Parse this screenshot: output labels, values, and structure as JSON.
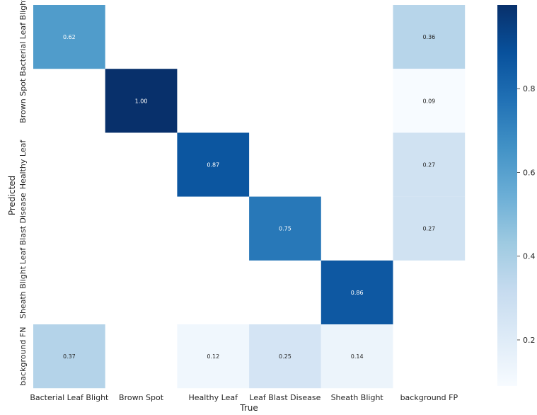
{
  "chart_data": {
    "type": "heatmap",
    "title": "",
    "xlabel": "True",
    "ylabel": "Predicted",
    "x_categories": [
      "Bacterial Leaf Blight",
      "Brown Spot",
      "Healthy Leaf",
      "Leaf Blast Disease",
      "Sheath Blight",
      "background FP"
    ],
    "y_categories": [
      "Bacterial Leaf Blight",
      "Brown Spot",
      "Healthy Leaf",
      "Leaf Blast Disease",
      "Sheath Blight",
      "background FN"
    ],
    "values": [
      [
        0.62,
        null,
        null,
        null,
        null,
        0.36
      ],
      [
        null,
        1.0,
        null,
        null,
        null,
        0.09
      ],
      [
        null,
        null,
        0.87,
        null,
        null,
        0.27
      ],
      [
        null,
        null,
        null,
        0.75,
        null,
        0.27
      ],
      [
        null,
        null,
        null,
        null,
        0.86,
        null
      ],
      [
        0.37,
        null,
        0.12,
        0.25,
        0.14,
        null
      ]
    ],
    "cell_labels": [
      [
        "0.62",
        "",
        "",
        "",
        "",
        "0.36"
      ],
      [
        "",
        "1.00",
        "",
        "",
        "",
        "0.09"
      ],
      [
        "",
        "",
        "0.87",
        "",
        "",
        "0.27"
      ],
      [
        "",
        "",
        "",
        "0.75",
        "",
        "0.27"
      ],
      [
        "",
        "",
        "",
        "",
        "0.86",
        ""
      ],
      [
        "0.37",
        "",
        "0.12",
        "0.25",
        "0.14",
        ""
      ]
    ],
    "colormap": "Blues",
    "vmin": 0.09,
    "vmax": 1.0,
    "colorbar_ticks": [
      {
        "value": 0.2,
        "label": "0.2"
      },
      {
        "value": 0.4,
        "label": "0.4"
      },
      {
        "value": 0.6,
        "label": "0.6"
      },
      {
        "value": 0.8,
        "label": "0.8"
      }
    ],
    "grid": false,
    "legend": "colorbar-right"
  }
}
